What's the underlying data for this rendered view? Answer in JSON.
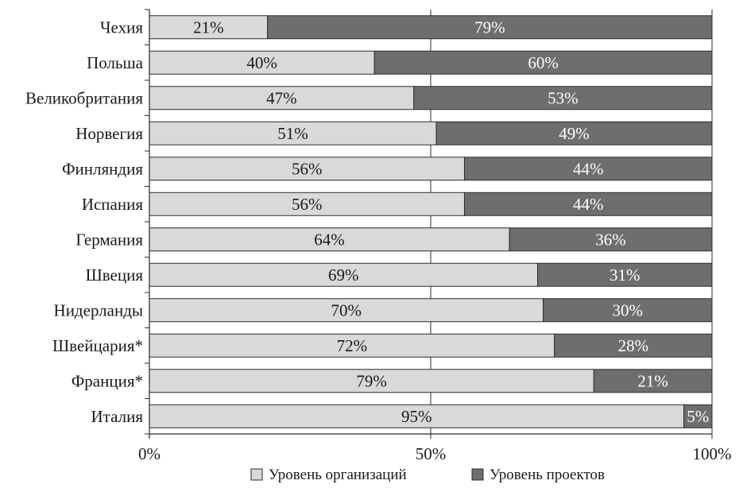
{
  "chart_data": {
    "type": "bar",
    "orientation": "horizontal",
    "stacked": true,
    "percent_stacked": true,
    "categories": [
      "Чехия",
      "Польша",
      "Великобритания",
      "Норвегия",
      "Финляндия",
      "Испания",
      "Германия",
      "Швеция",
      "Нидерланды",
      "Швейцария*",
      "Франция*",
      "Италия"
    ],
    "series": [
      {
        "name": "Уровень организаций",
        "values": [
          21,
          40,
          47,
          51,
          56,
          56,
          64,
          69,
          70,
          72,
          79,
          95
        ],
        "labels": [
          "21%",
          "40%",
          "47%",
          "51%",
          "56%",
          "56%",
          "64%",
          "69%",
          "70%",
          "72%",
          "79%",
          "95%"
        ],
        "color": "#d9d9d9"
      },
      {
        "name": "Уровень проектов",
        "values": [
          79,
          60,
          53,
          49,
          44,
          44,
          36,
          31,
          30,
          28,
          21,
          5
        ],
        "labels": [
          "79%",
          "60%",
          "53%",
          "49%",
          "44%",
          "44%",
          "36%",
          "31%",
          "30%",
          "28%",
          "21%",
          "5%"
        ],
        "color": "#6e6e6e"
      }
    ],
    "xlim": [
      0,
      100
    ],
    "x_ticks": [
      0,
      50,
      100
    ],
    "x_tick_labels": [
      "0%",
      "50%",
      "100%"
    ],
    "title": "",
    "xlabel": "",
    "ylabel": "",
    "grid": "vertical at 50%",
    "legend_position": "bottom"
  }
}
